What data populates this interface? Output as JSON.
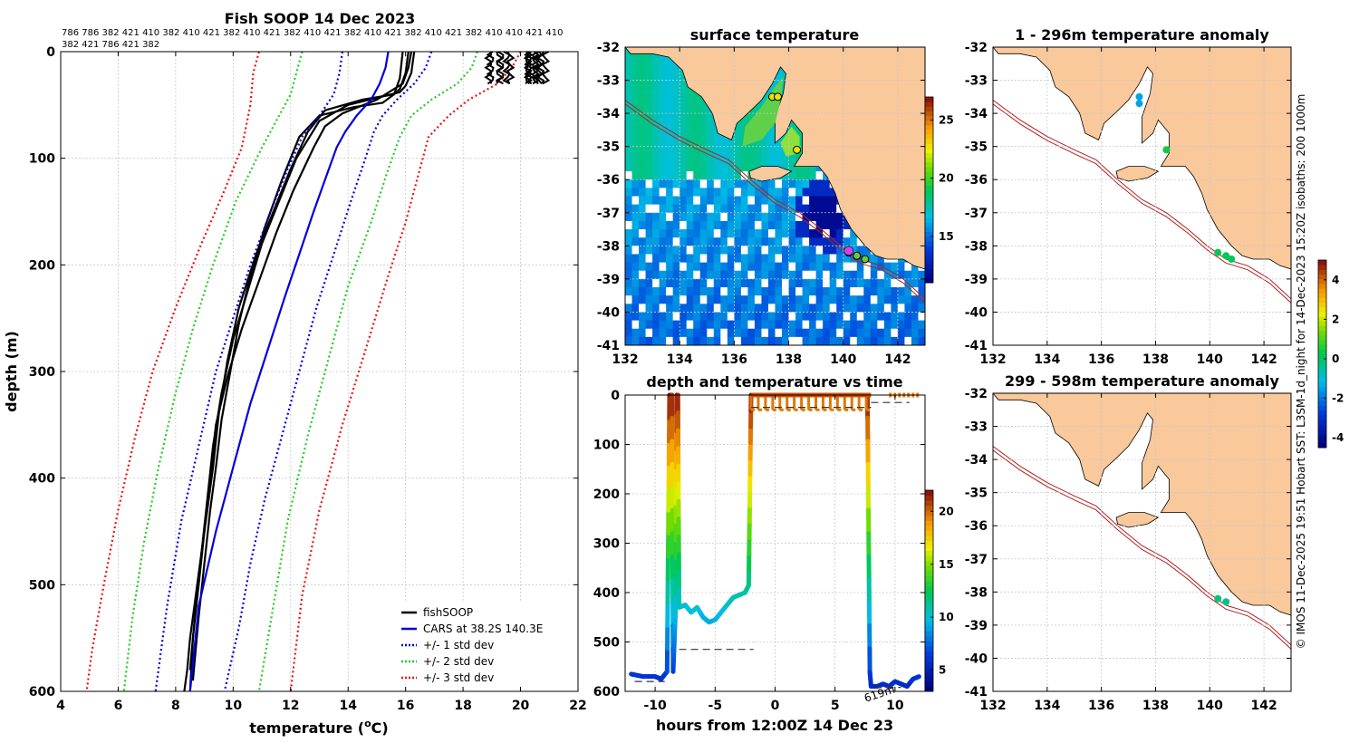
{
  "chart_data": [
    {
      "id": "profile",
      "type": "line",
      "title": "Fish SOOP 14 Dec 2023",
      "top_labels_line1": "786 786 382 421 410 382 410 421 382 410 421 382 410 421 382 410 421 382 410 421 382 410 410 421 410",
      "top_labels_line2": "382 421 786 421 382",
      "xlabel": "temperature (",
      "xlabel_unit": "o",
      "xlabel_end": "C)",
      "ylabel": "depth (m)",
      "xlim": [
        4,
        22
      ],
      "ylim": [
        600,
        0
      ],
      "xticks": [
        4,
        6,
        8,
        10,
        12,
        14,
        16,
        18,
        20,
        22
      ],
      "yticks": [
        0,
        100,
        200,
        300,
        400,
        500,
        600
      ],
      "grid": true,
      "legend_position": "bottom-right",
      "series": [
        {
          "name": "fishSOOP",
          "color": "#000000",
          "style": "solid",
          "profiles": [
            {
              "temp": [
                16.1,
                16.0,
                15.8,
                15.6,
                14.5,
                13.2,
                12.6,
                12.0,
                11.4,
                10.8,
                10.2,
                9.8,
                9.5,
                9.3,
                9.1,
                8.9,
                8.7,
                8.5,
                8.4,
                8.3
              ],
              "depth": [
                0,
                20,
                35,
                40,
                45,
                55,
                75,
                110,
                150,
                190,
                240,
                290,
                340,
                390,
                430,
                470,
                510,
                550,
                580,
                600
              ]
            },
            {
              "temp": [
                16.3,
                16.2,
                16.0,
                15.8,
                15.2,
                14.0,
                13.0,
                12.2,
                11.6,
                11.0,
                10.5,
                10.0,
                9.6,
                9.3,
                9.1,
                8.9,
                8.7,
                8.5
              ],
              "depth": [
                0,
                20,
                32,
                38,
                42,
                50,
                65,
                100,
                140,
                180,
                225,
                270,
                320,
                370,
                420,
                470,
                520,
                580
              ]
            },
            {
              "temp": [
                15.9,
                15.8,
                15.6,
                15.2,
                14.2,
                13.0,
                12.3,
                11.7,
                11.1,
                10.6,
                10.2,
                9.9,
                9.6,
                9.4,
                9.2,
                9.0,
                8.8,
                8.6
              ],
              "depth": [
                0,
                25,
                40,
                48,
                52,
                60,
                80,
                120,
                165,
                210,
                255,
                300,
                345,
                390,
                430,
                480,
                530,
                590
              ]
            },
            {
              "temp": [
                16.2,
                16.1,
                15.9,
                15.0,
                13.8,
                13.2,
                12.8,
                12.1,
                11.5,
                10.9,
                10.3,
                9.8,
                9.4,
                9.2,
                9.0,
                8.8,
                8.6,
                8.5
              ],
              "depth": [
                0,
                15,
                30,
                45,
                58,
                70,
                90,
                130,
                170,
                215,
                260,
                305,
                350,
                400,
                450,
                500,
                550,
                600
              ]
            }
          ]
        },
        {
          "name": "CARS at 38.2S 140.3E",
          "color": "#0000dd",
          "style": "solid",
          "temp": [
            15.4,
            15.3,
            15.1,
            14.8,
            14.3,
            13.9,
            13.6,
            13.2,
            12.8,
            12.3,
            11.8,
            11.2,
            10.6,
            10.0,
            9.4,
            8.8,
            8.5
          ],
          "depth": [
            0,
            15,
            30,
            45,
            60,
            75,
            90,
            120,
            150,
            190,
            230,
            280,
            330,
            390,
            450,
            520,
            600
          ]
        },
        {
          "name": "+/- 1 std dev",
          "color": "#0000dd",
          "style": "dotted",
          "lower": {
            "temp": [
              13.8,
              13.7,
              13.5,
              13.0,
              12.4,
              11.9,
              11.3,
              10.6,
              10.0,
              9.4,
              8.8,
              8.2,
              7.7,
              7.3
            ],
            "depth": [
              0,
              20,
              40,
              60,
              80,
              110,
              150,
              200,
              250,
              300,
              370,
              440,
              520,
              600
            ]
          },
          "upper": {
            "temp": [
              16.9,
              16.7,
              16.3,
              15.7,
              15.2,
              14.9,
              14.6,
              14.1,
              13.5,
              12.9,
              12.3,
              11.7,
              11.1,
              10.6,
              10.2,
              9.7
            ],
            "depth": [
              0,
              15,
              30,
              45,
              60,
              75,
              100,
              140,
              190,
              240,
              300,
              360,
              420,
              480,
              540,
              600
            ]
          }
        },
        {
          "name": "+/- 2 std dev",
          "color": "#22cc22",
          "style": "dotted",
          "lower": {
            "temp": [
              12.4,
              12.2,
              12.0,
              11.6,
              11.0,
              10.1,
              9.3,
              8.6,
              8.0,
              7.4,
              6.9,
              6.5,
              6.2
            ],
            "depth": [
              0,
              20,
              40,
              60,
              90,
              140,
              200,
              260,
              320,
              390,
              460,
              530,
              600
            ]
          },
          "upper": {
            "temp": [
              18.5,
              18.3,
              17.8,
              16.9,
              16.2,
              15.8,
              15.4,
              14.8,
              14.0,
              13.3,
              12.6,
              11.9,
              11.4,
              10.9
            ],
            "depth": [
              0,
              15,
              30,
              45,
              60,
              80,
              110,
              160,
              220,
              290,
              360,
              440,
              520,
              600
            ]
          }
        },
        {
          "name": "+/- 3 std dev",
          "color": "#ee1111",
          "style": "dotted",
          "lower": {
            "temp": [
              10.9,
              10.7,
              10.6,
              10.3,
              9.7,
              8.9,
              8.0,
              7.2,
              6.6,
              6.0,
              5.5,
              5.1,
              4.9
            ],
            "depth": [
              0,
              20,
              50,
              90,
              130,
              180,
              240,
              300,
              360,
              430,
              500,
              560,
              600
            ]
          },
          "upper": {
            "temp": [
              20.0,
              19.7,
              19.2,
              18.2,
              17.5,
              16.8,
              16.5,
              16.0,
              15.4,
              14.6,
              13.8,
              13.0,
              12.4,
              12.0
            ],
            "depth": [
              0,
              15,
              30,
              45,
              60,
              80,
              110,
              160,
              210,
              280,
              350,
              430,
              510,
              600
            ]
          }
        }
      ],
      "surface_cluster": {
        "temp": [
          18.8,
          21.2
        ],
        "depth": [
          0,
          30
        ]
      }
    },
    {
      "id": "sst_map",
      "type": "heatmap",
      "title": "surface temperature",
      "xlim": [
        132,
        143
      ],
      "ylim": [
        -41,
        -32
      ],
      "xticks": [
        132,
        134,
        136,
        138,
        140,
        142
      ],
      "yticks": [
        -32,
        -33,
        -34,
        -35,
        -36,
        -37,
        -38,
        -39,
        -40,
        -41
      ],
      "colorbar_ticks": [
        15,
        20,
        25
      ],
      "colorbar_range": [
        11,
        27
      ],
      "stations": [
        [
          137.4,
          -33.5
        ],
        [
          137.6,
          -33.5
        ],
        [
          138.3,
          -35.1
        ],
        [
          140.2,
          -38.2
        ],
        [
          140.5,
          -38.3
        ],
        [
          140.8,
          -38.4
        ]
      ]
    },
    {
      "id": "depth_time",
      "type": "scatter",
      "title": "depth and temperature vs time",
      "xlabel": "hours from 12:00Z 14 Dec 23",
      "xlim": [
        -12.5,
        12.5
      ],
      "ylim": [
        600,
        0
      ],
      "xticks": [
        -10,
        -5,
        0,
        5,
        10
      ],
      "yticks": [
        0,
        100,
        200,
        300,
        400,
        500,
        600
      ],
      "colorbar_ticks": [
        5,
        10,
        15,
        20
      ],
      "colorbar_range": [
        3,
        22
      ],
      "annotation": "619m",
      "track": {
        "time": [
          -12,
          -11,
          -10,
          -9.5,
          -9.0,
          -8.8,
          -8.6,
          -8.5,
          -8.3,
          -8.2,
          -8.1,
          -8.0,
          -7.8,
          -7.5,
          -7,
          -6.5,
          -6,
          -5.5,
          -5,
          -4.5,
          -4,
          -3.5,
          -3,
          -2.5,
          -2.2,
          -2.0,
          -1.9,
          -1.8
        ],
        "depth": [
          565,
          570,
          570,
          575,
          560,
          0,
          0,
          560,
          440,
          0,
          0,
          430,
          428,
          425,
          440,
          430,
          450,
          460,
          455,
          440,
          425,
          410,
          405,
          400,
          385,
          0,
          0,
          0
        ]
      },
      "surface_box": {
        "time": [
          -2,
          8
        ],
        "depth": [
          0,
          30
        ]
      },
      "track2": {
        "time": [
          7.5,
          7.7,
          7.9,
          8.0,
          8.5,
          9,
          9.5,
          10,
          10.5,
          11,
          11.5,
          12
        ],
        "depth": [
          0,
          0,
          560,
          590,
          590,
          585,
          590,
          580,
          585,
          590,
          575,
          570
        ]
      },
      "dashes": [
        {
          "time": [
            -11.7,
            -9.2
          ],
          "depth": 580
        },
        {
          "time": [
            -8.0,
            -1.8
          ],
          "depth": 515
        },
        {
          "time": [
            8.3,
            10.5
          ],
          "depth": 592
        },
        {
          "time": [
            8.0,
            11.2
          ],
          "depth": 15
        },
        {
          "time": [
            -2,
            8
          ],
          "depth": 25
        }
      ],
      "tail_points": {
        "time": [
          9.5,
          12
        ],
        "depth": [
          0,
          0
        ]
      }
    },
    {
      "id": "anom_shallow",
      "type": "scatter",
      "title": "1 - 296m temperature anomaly",
      "xlim": [
        132,
        143
      ],
      "ylim": [
        -41,
        -32
      ],
      "xticks": [
        132,
        134,
        136,
        138,
        140,
        142
      ],
      "yticks": [
        -32,
        -33,
        -34,
        -35,
        -36,
        -37,
        -38,
        -39,
        -40,
        -41
      ],
      "points": [
        {
          "lon": 137.4,
          "lat": -33.5,
          "anomaly": -1.5
        },
        {
          "lon": 137.4,
          "lat": -33.7,
          "anomaly": -1.5
        },
        {
          "lon": 138.4,
          "lat": -35.1,
          "anomaly": 0.4
        },
        {
          "lon": 140.3,
          "lat": -38.2,
          "anomaly": 0.2
        },
        {
          "lon": 140.6,
          "lat": -38.3,
          "anomaly": 0.2
        },
        {
          "lon": 140.8,
          "lat": -38.4,
          "anomaly": 0.1
        }
      ]
    },
    {
      "id": "anom_deep",
      "type": "scatter",
      "title": "299 - 598m temperature anomaly",
      "xlim": [
        132,
        143
      ],
      "ylim": [
        -41,
        -32
      ],
      "xticks": [
        132,
        134,
        136,
        138,
        140,
        142
      ],
      "yticks": [
        -32,
        -33,
        -34,
        -35,
        -36,
        -37,
        -38,
        -39,
        -40,
        -41
      ],
      "points": [
        {
          "lon": 140.3,
          "lat": -38.2,
          "anomaly": -0.2
        },
        {
          "lon": 140.6,
          "lat": -38.3,
          "anomaly": -0.3
        }
      ],
      "colorbar_ticks": [
        -4,
        -2,
        0,
        2,
        4
      ],
      "colorbar_range": [
        -4.5,
        5
      ]
    }
  ],
  "credit": "© IMOS 11-Dec-2025 19:51 Hobart SST: L3SM-1d_night for 14-Dec-2023 15:20Z isobaths: 200  1000m",
  "colors": {
    "land": "#f9c89b",
    "isobath": "#b22222",
    "grid": "#c8c8c8"
  }
}
